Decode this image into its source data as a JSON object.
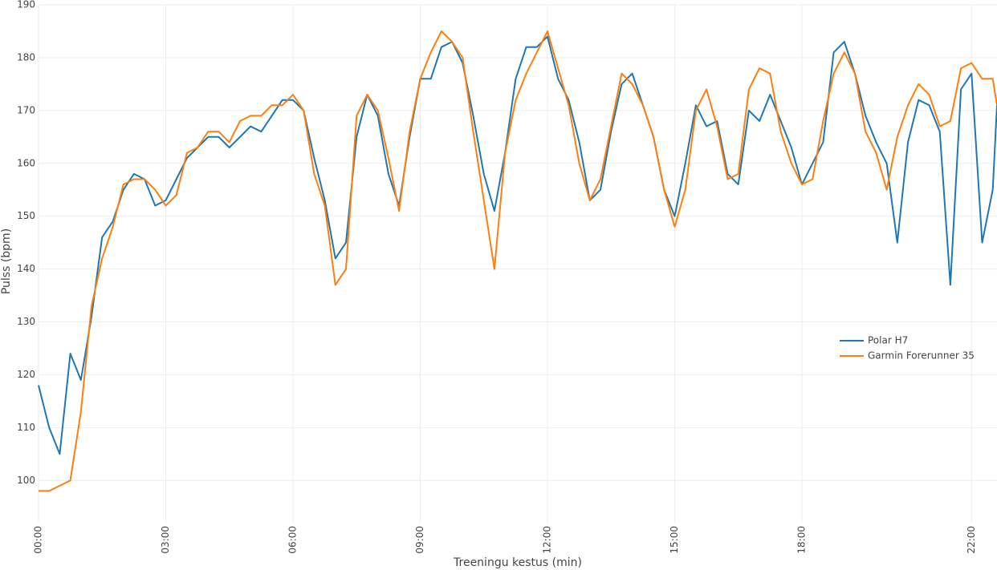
{
  "chart_data": {
    "type": "line",
    "xlabel": "Treeningu kestus (min)",
    "ylabel": "Pulss (bpm)",
    "x": [
      0,
      0.25,
      0.5,
      0.75,
      1,
      1.25,
      1.5,
      1.75,
      2,
      2.25,
      2.5,
      2.75,
      3,
      3.25,
      3.5,
      3.75,
      4,
      4.25,
      4.5,
      4.75,
      5,
      5.25,
      5.5,
      5.75,
      6,
      6.25,
      6.5,
      6.75,
      7,
      7.25,
      7.5,
      7.75,
      8,
      8.25,
      8.5,
      8.75,
      9,
      9.25,
      9.5,
      9.75,
      10,
      10.25,
      10.5,
      10.75,
      11,
      11.25,
      11.5,
      11.75,
      12,
      12.25,
      12.5,
      12.75,
      13,
      13.25,
      13.5,
      13.75,
      14,
      14.25,
      14.5,
      14.75,
      15,
      15.25,
      15.5,
      15.75,
      16,
      16.25,
      16.5,
      16.75,
      17,
      17.25,
      17.5,
      17.75,
      18,
      18.25,
      18.5,
      18.75,
      19,
      19.25,
      19.5,
      19.75,
      20,
      20.25,
      20.5,
      20.75,
      21,
      21.25,
      21.5,
      21.75,
      22,
      22.25,
      22.5,
      22.6
    ],
    "series": [
      {
        "name": "Polar H7",
        "color": "#1f77b4",
        "values": [
          118,
          110,
          105,
          124,
          119,
          131,
          146,
          149,
          155,
          158,
          157,
          152,
          153,
          157,
          161,
          163,
          165,
          165,
          163,
          165,
          167,
          166,
          169,
          172,
          172,
          170,
          161,
          153,
          142,
          145,
          165,
          173,
          169,
          158,
          152,
          165,
          176,
          176,
          182,
          183,
          179,
          169,
          158,
          151,
          162,
          176,
          182,
          182,
          184,
          176,
          172,
          164,
          153,
          155,
          166,
          175,
          177,
          171,
          165,
          155,
          150,
          160,
          171,
          167,
          168,
          158,
          156,
          170,
          168,
          173,
          168,
          163,
          156,
          160,
          164,
          181,
          183,
          177,
          169,
          164,
          160,
          145,
          164,
          172,
          171,
          166,
          137,
          174,
          177,
          145,
          155,
          171
        ]
      },
      {
        "name": "Garmin Forerunner 35",
        "color": "#ff7f0e",
        "values": [
          98,
          98,
          99,
          100,
          113,
          133,
          142,
          148,
          156,
          157,
          157,
          155,
          152,
          154,
          162,
          163,
          166,
          166,
          164,
          168,
          169,
          169,
          171,
          171,
          173,
          170,
          158,
          152,
          137,
          140,
          169,
          173,
          170,
          161,
          151,
          166,
          176,
          181,
          185,
          183,
          180,
          166,
          153,
          140,
          162,
          172,
          177,
          181,
          185,
          178,
          171,
          160,
          153,
          157,
          167,
          177,
          175,
          171,
          165,
          155,
          148,
          155,
          170,
          174,
          167,
          157,
          158,
          174,
          178,
          177,
          166,
          160,
          156,
          157,
          168,
          177,
          181,
          177,
          166,
          162,
          155,
          165,
          171,
          175,
          173,
          167,
          168,
          178,
          179,
          176,
          176,
          171
        ]
      }
    ],
    "xlim": [
      0,
      22.6
    ],
    "xticks": [
      {
        "value": 0,
        "label": "00:00"
      },
      {
        "value": 3,
        "label": "03:00"
      },
      {
        "value": 6,
        "label": "06:00"
      },
      {
        "value": 9,
        "label": "09:00"
      },
      {
        "value": 12,
        "label": "12:00"
      },
      {
        "value": 15,
        "label": "15:00"
      },
      {
        "value": 18,
        "label": "18:00"
      },
      {
        "value": 22,
        "label": "22:00"
      }
    ],
    "ylim": [
      92,
      190
    ],
    "yticks": [
      100,
      110,
      120,
      130,
      140,
      150,
      160,
      170,
      180,
      190
    ],
    "grid": true,
    "legend": "right"
  }
}
